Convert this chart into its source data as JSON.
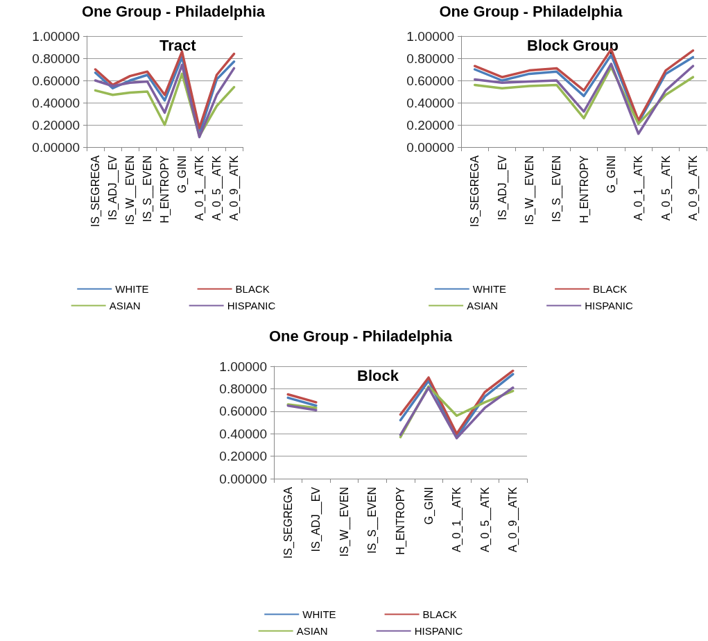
{
  "chart_data": [
    {
      "type": "line",
      "title": "One Group - Philadelphia",
      "annotations": [
        "Tract"
      ],
      "categories": [
        "IS_SEGREGA",
        "IS_ADJ__EV",
        "IS_W__EVEN",
        "IS_S__EVEN",
        "H_ENTROPY",
        "G_GINI",
        "A_0_1__ATK",
        "A_0_5__ATK",
        "A_0_9__ATK"
      ],
      "series": [
        {
          "name": "WHITE",
          "color": "#4a7ebb",
          "values": [
            0.67,
            0.53,
            0.6,
            0.65,
            0.42,
            0.81,
            0.12,
            0.61,
            0.77
          ]
        },
        {
          "name": "BLACK",
          "color": "#be4b48",
          "values": [
            0.7,
            0.56,
            0.64,
            0.68,
            0.47,
            0.86,
            0.17,
            0.65,
            0.84
          ]
        },
        {
          "name": "ASIAN",
          "color": "#98b954",
          "values": [
            0.51,
            0.47,
            0.49,
            0.5,
            0.2,
            0.66,
            0.1,
            0.37,
            0.54
          ]
        },
        {
          "name": "HISPANIC",
          "color": "#7d60a0",
          "values": [
            0.6,
            0.55,
            0.58,
            0.59,
            0.31,
            0.74,
            0.09,
            0.47,
            0.71
          ]
        }
      ],
      "ylim": [
        0,
        1
      ],
      "yticks": [
        {
          "value": 0,
          "label": "0.00000"
        },
        {
          "value": 0.2,
          "label": "0.20000"
        },
        {
          "value": 0.4,
          "label": "0.40000"
        },
        {
          "value": 0.6,
          "label": "0.60000"
        },
        {
          "value": 0.8,
          "label": "0.80000"
        },
        {
          "value": 1,
          "label": "1.00000"
        }
      ],
      "grid": "y",
      "legend": "bottom",
      "marker": "none",
      "line_style": "solid"
    },
    {
      "type": "line",
      "title": "One Group - Philadelphia",
      "annotations": [
        "Block Group"
      ],
      "categories": [
        "IS_SEGREGA",
        "IS_ADJ__EV",
        "IS_W__EVEN",
        "IS_S__EVEN",
        "H_ENTROPY",
        "G_GINI",
        "A_0_1__ATK",
        "A_0_5__ATK",
        "A_0_9__ATK"
      ],
      "series": [
        {
          "name": "WHITE",
          "color": "#4a7ebb",
          "values": [
            0.7,
            0.6,
            0.66,
            0.68,
            0.46,
            0.83,
            0.22,
            0.66,
            0.81
          ]
        },
        {
          "name": "BLACK",
          "color": "#be4b48",
          "values": [
            0.73,
            0.63,
            0.69,
            0.71,
            0.51,
            0.88,
            0.24,
            0.69,
            0.87
          ]
        },
        {
          "name": "ASIAN",
          "color": "#98b954",
          "values": [
            0.56,
            0.53,
            0.55,
            0.56,
            0.26,
            0.72,
            0.21,
            0.47,
            0.63
          ]
        },
        {
          "name": "HISPANIC",
          "color": "#7d60a0",
          "values": [
            0.61,
            0.58,
            0.59,
            0.6,
            0.32,
            0.75,
            0.12,
            0.51,
            0.73
          ]
        }
      ],
      "ylim": [
        0,
        1
      ],
      "yticks": [
        {
          "value": 0,
          "label": "0.00000"
        },
        {
          "value": 0.2,
          "label": "0.20000"
        },
        {
          "value": 0.4,
          "label": "0.40000"
        },
        {
          "value": 0.6,
          "label": "0.60000"
        },
        {
          "value": 0.8,
          "label": "0.80000"
        },
        {
          "value": 1,
          "label": "1.00000"
        }
      ],
      "grid": "y",
      "legend": "bottom",
      "marker": "none",
      "line_style": "solid"
    },
    {
      "type": "line",
      "title": "One Group - Philadelphia",
      "annotations": [
        "Block"
      ],
      "categories": [
        "IS_SEGREGA",
        "IS_ADJ__EV",
        "IS_W__EVEN",
        "IS_S__EVEN",
        "H_ENTROPY",
        "G_GINI",
        "A_0_1__ATK",
        "A_0_5__ATK",
        "A_0_9__ATK"
      ],
      "series": [
        {
          "name": "WHITE",
          "color": "#4a7ebb",
          "values": [
            0.72,
            0.65,
            null,
            null,
            0.52,
            0.87,
            0.37,
            0.73,
            0.93
          ]
        },
        {
          "name": "BLACK",
          "color": "#be4b48",
          "values": [
            0.75,
            0.68,
            null,
            null,
            0.57,
            0.9,
            0.4,
            0.77,
            0.96
          ]
        },
        {
          "name": "ASIAN",
          "color": "#98b954",
          "values": [
            0.66,
            0.63,
            null,
            null,
            0.37,
            0.82,
            0.56,
            0.68,
            0.78
          ]
        },
        {
          "name": "HISPANIC",
          "color": "#7d60a0",
          "values": [
            0.65,
            0.61,
            null,
            null,
            0.39,
            0.81,
            0.36,
            0.63,
            0.81
          ]
        }
      ],
      "ylim": [
        0,
        1
      ],
      "yticks": [
        {
          "value": 0,
          "label": "0.00000"
        },
        {
          "value": 0.2,
          "label": "0.20000"
        },
        {
          "value": 0.4,
          "label": "0.40000"
        },
        {
          "value": 0.6,
          "label": "0.60000"
        },
        {
          "value": 0.8,
          "label": "0.80000"
        },
        {
          "value": 1,
          "label": "1.00000"
        }
      ],
      "grid": "y",
      "legend": "bottom",
      "marker": "none",
      "line_style": "solid"
    }
  ]
}
